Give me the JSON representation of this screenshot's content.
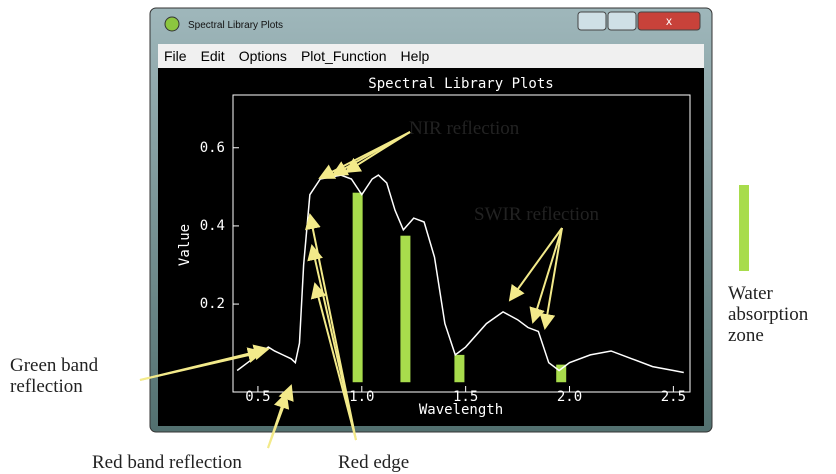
{
  "window": {
    "title": "Spectral Library Plots",
    "menu": [
      "File",
      "Edit",
      "Options",
      "Plot_Function",
      "Help"
    ]
  },
  "chart_data": {
    "type": "line",
    "title": "Spectral Library Plots",
    "x_label": "Wavelength",
    "y_label": "Value",
    "xlim": [
      0.38,
      2.58
    ],
    "ylim": [
      -0.025,
      0.735
    ],
    "xticks": [
      0.5,
      {
        "value": 1,
        "label": "1.0"
      },
      1.5,
      {
        "value": 2,
        "label": "2.0"
      },
      2.5
    ],
    "yticks": [
      0.2,
      0.4,
      0.6
    ],
    "series": [
      {
        "color": "#ffffff",
        "x": [
          0.4,
          0.45,
          0.5,
          0.55,
          0.58,
          0.62,
          0.66,
          0.68,
          0.7,
          0.72,
          0.75,
          0.8,
          0.9,
          0.95,
          1.0,
          1.05,
          1.08,
          1.12,
          1.16,
          1.2,
          1.25,
          1.3,
          1.35,
          1.4,
          1.45,
          1.5,
          1.6,
          1.68,
          1.75,
          1.8,
          1.85,
          1.9,
          1.95,
          2.0,
          2.1,
          2.2,
          2.3,
          2.4,
          2.5,
          2.55
        ],
        "values": [
          0.03,
          0.05,
          0.07,
          0.09,
          0.08,
          0.07,
          0.06,
          0.05,
          0.1,
          0.3,
          0.48,
          0.52,
          0.53,
          0.52,
          0.48,
          0.52,
          0.53,
          0.51,
          0.44,
          0.39,
          0.42,
          0.41,
          0.32,
          0.15,
          0.07,
          0.09,
          0.15,
          0.18,
          0.16,
          0.14,
          0.13,
          0.05,
          0.03,
          0.05,
          0.07,
          0.08,
          0.06,
          0.04,
          0.03,
          0.025
        ]
      }
    ],
    "absorption_zones": {
      "name": "Water absorption zone",
      "color": "#a8dc4c",
      "x": [
        0.98,
        1.21,
        1.47,
        1.96
      ],
      "values": [
        0.485,
        0.375,
        0.07,
        0.045
      ]
    },
    "annotations": [
      "NIR reflection",
      "SWIR reflection",
      "Green band reflection",
      "Red band reflection",
      "Red edge"
    ]
  }
}
